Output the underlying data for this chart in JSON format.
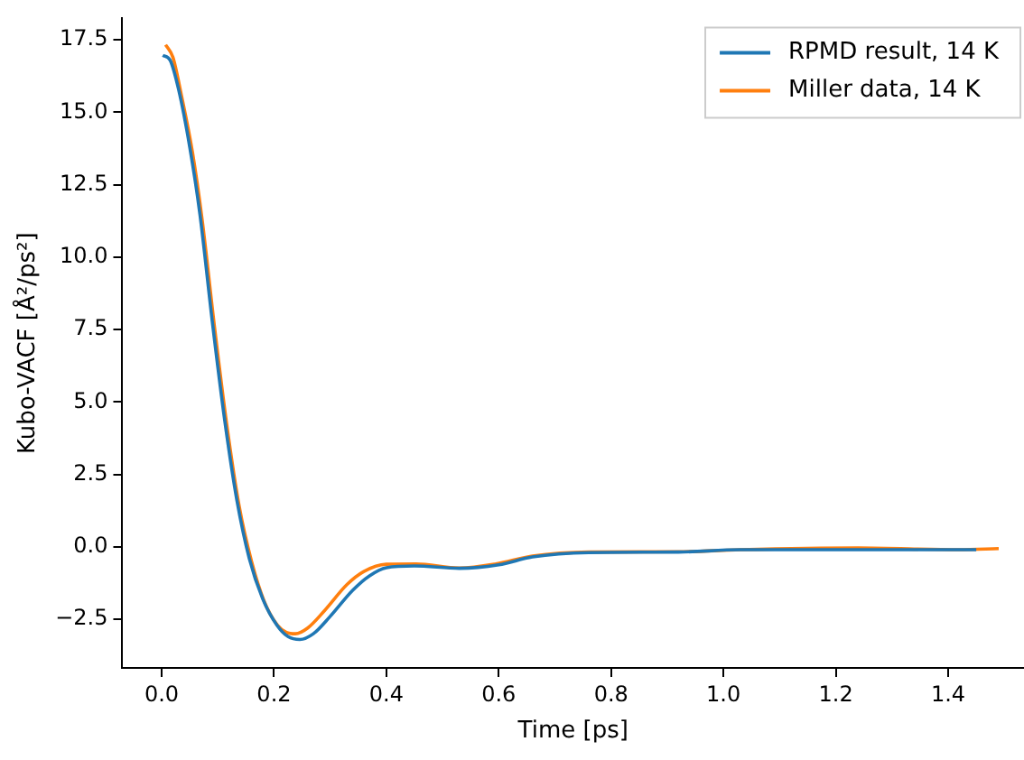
{
  "chart_data": {
    "type": "line",
    "xlabel": "Time [ps]",
    "ylabel": "Kubo-VACF [Å²/ps²]",
    "xlim": [
      -0.07,
      1.535
    ],
    "ylim": [
      -4.18,
      18.24
    ],
    "xticks": [
      {
        "value": 0,
        "label": "0.0"
      },
      {
        "value": 0.2,
        "label": "0.2"
      },
      {
        "value": 0.4,
        "label": "0.4"
      },
      {
        "value": 0.6,
        "label": "0.6"
      },
      {
        "value": 0.8,
        "label": "0.8"
      },
      {
        "value": 1,
        "label": "1.0"
      },
      {
        "value": 1.2,
        "label": "1.2"
      },
      {
        "value": 1.4,
        "label": "1.4"
      }
    ],
    "yticks": [
      {
        "value": -2.5,
        "label": "−2.5"
      },
      {
        "value": 0,
        "label": "0.0"
      },
      {
        "value": 2.5,
        "label": "2.5"
      },
      {
        "value": 5,
        "label": "5.0"
      },
      {
        "value": 7.5,
        "label": "7.5"
      },
      {
        "value": 10,
        "label": "10.0"
      },
      {
        "value": 12.5,
        "label": "12.5"
      },
      {
        "value": 15,
        "label": "15.0"
      },
      {
        "value": 17.5,
        "label": "17.5"
      }
    ],
    "grid": false,
    "legend": "top right",
    "marker": "none",
    "line_style": "solid",
    "series": [
      {
        "name": "RPMD result, 14 K",
        "color": "#1f77b4",
        "x": [
          0.002,
          0.015,
          0.03,
          0.05,
          0.068,
          0.09,
          0.112,
          0.134,
          0.156,
          0.18,
          0.205,
          0.225,
          0.246,
          0.27,
          0.3,
          0.34,
          0.37,
          0.4,
          0.45,
          0.53,
          0.6,
          0.66,
          0.76,
          0.92,
          1.03,
          1.24,
          1.45
        ],
        "values": [
          16.97,
          16.8,
          15.8,
          13.8,
          11.5,
          7.8,
          4.4,
          1.6,
          -0.4,
          -1.8,
          -2.7,
          -3.1,
          -3.2,
          -3.0,
          -2.4,
          -1.5,
          -1.0,
          -0.72,
          -0.66,
          -0.74,
          -0.62,
          -0.35,
          -0.2,
          -0.18,
          -0.1,
          -0.1,
          -0.1
        ]
      },
      {
        "name": "Miller data, 14 K",
        "color": "#ff7f0e",
        "x": [
          0.007,
          0.02,
          0.035,
          0.055,
          0.072,
          0.094,
          0.116,
          0.138,
          0.16,
          0.183,
          0.206,
          0.222,
          0.238,
          0.26,
          0.29,
          0.33,
          0.36,
          0.4,
          0.453,
          0.53,
          0.595,
          0.66,
          0.76,
          0.92,
          1.03,
          1.24,
          1.42,
          1.49
        ],
        "values": [
          17.33,
          16.9,
          15.6,
          13.6,
          11.3,
          7.6,
          4.2,
          1.4,
          -0.5,
          -1.9,
          -2.7,
          -2.95,
          -3.0,
          -2.8,
          -2.2,
          -1.3,
          -0.85,
          -0.6,
          -0.59,
          -0.73,
          -0.59,
          -0.32,
          -0.18,
          -0.17,
          -0.1,
          -0.04,
          -0.1,
          -0.06
        ]
      }
    ]
  }
}
